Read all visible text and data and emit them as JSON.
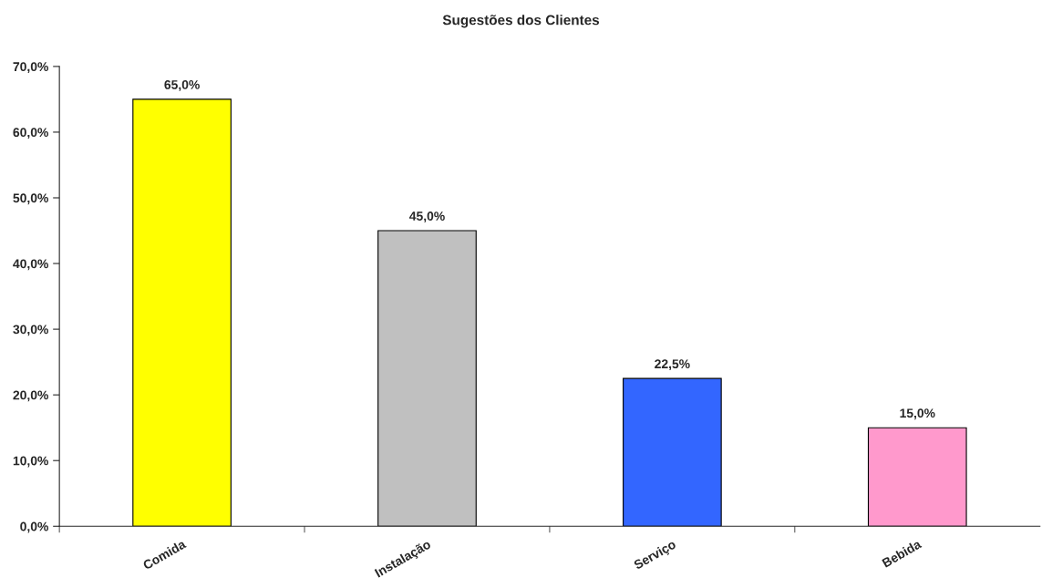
{
  "chart_data": {
    "type": "bar",
    "title": "Sugestões dos Clientes",
    "categories": [
      "Comida",
      "Instalação",
      "Serviço",
      "Bebida"
    ],
    "values": [
      65,
      45,
      22.5,
      15
    ],
    "colors": [
      "#ffff00",
      "#c0c0c0",
      "#3366ff",
      "#ff99cc"
    ],
    "value_labels": [
      "65,0%",
      "45,0%",
      "22,5%",
      "15,0%"
    ],
    "ylim": [
      0,
      70
    ],
    "yticks": [
      {
        "value": 0,
        "label": "0,0%"
      },
      {
        "value": 10,
        "label": "10,0%"
      },
      {
        "value": 20,
        "label": "20,0%"
      },
      {
        "value": 30,
        "label": "30,0%"
      },
      {
        "value": 40,
        "label": "40,0%"
      },
      {
        "value": 50,
        "label": "50,0%"
      },
      {
        "value": 60,
        "label": "60,0%"
      },
      {
        "value": 70,
        "label": "70,0%"
      }
    ],
    "grid": false,
    "legend": false
  }
}
